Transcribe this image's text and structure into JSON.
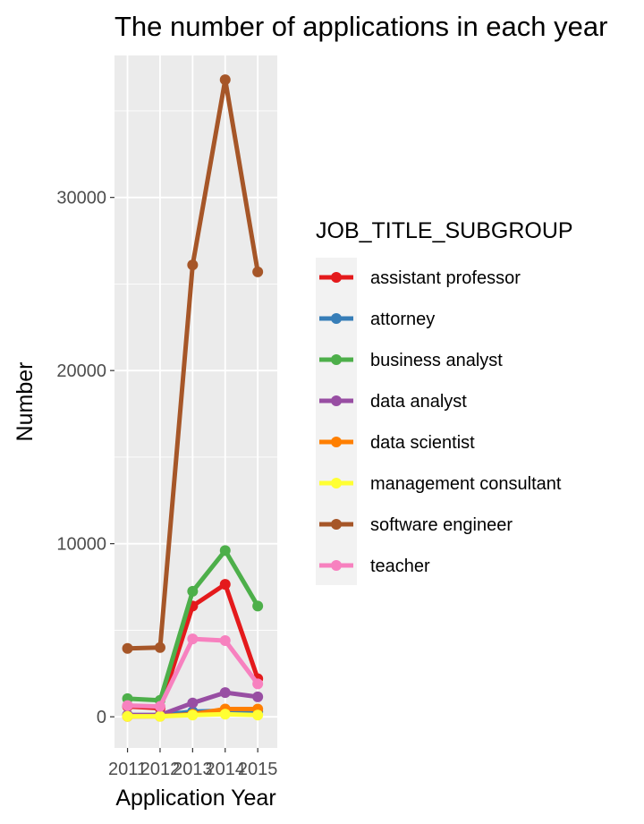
{
  "chart_data": {
    "type": "line",
    "title": "The number of applications in each year",
    "xlabel": "Application Year",
    "ylabel": "Number",
    "x": [
      2011,
      2012,
      2013,
      2014,
      2015
    ],
    "xlim": [
      2010.6,
      2015.6
    ],
    "ylim": [
      -1800,
      38200
    ],
    "yticks": [
      0,
      10000,
      20000,
      30000
    ],
    "grid": true,
    "legend_position": "right",
    "legend_title": "JOB_TITLE_SUBGROUP",
    "series": [
      {
        "name": "assistant professor",
        "color": "#e41a1c",
        "values": [
          600,
          500,
          6400,
          7650,
          2200
        ]
      },
      {
        "name": "attorney",
        "color": "#377eb8",
        "values": [
          100,
          100,
          300,
          350,
          300
        ]
      },
      {
        "name": "business analyst",
        "color": "#4daf4a",
        "values": [
          1050,
          950,
          7250,
          9600,
          6400
        ]
      },
      {
        "name": "data analyst",
        "color": "#984ea3",
        "values": [
          100,
          100,
          800,
          1400,
          1150
        ]
      },
      {
        "name": "data scientist",
        "color": "#ff7f00",
        "values": [
          20,
          30,
          150,
          450,
          450
        ]
      },
      {
        "name": "management consultant",
        "color": "#ffff33",
        "values": [
          30,
          30,
          100,
          150,
          100
        ]
      },
      {
        "name": "software engineer",
        "color": "#a65628",
        "values": [
          3950,
          4000,
          26100,
          36800,
          25700
        ]
      },
      {
        "name": "teacher",
        "color": "#f781bf",
        "values": [
          650,
          600,
          4500,
          4400,
          1900
        ]
      }
    ]
  }
}
